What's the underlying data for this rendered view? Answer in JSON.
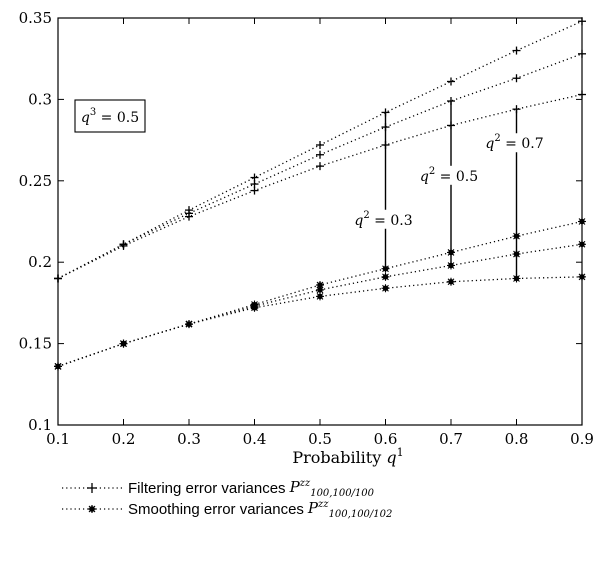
{
  "chart_data": {
    "type": "line",
    "xlabel": "Probability q",
    "xlabel_sup": "1",
    "xlim": [
      0.1,
      0.9
    ],
    "ylim": [
      0.1,
      0.35
    ],
    "xticks": [
      "0.1",
      "0.2",
      "0.3",
      "0.4",
      "0.5",
      "0.6",
      "0.7",
      "0.8",
      "0.9"
    ],
    "yticks": [
      "0.1",
      "0.15",
      "0.2",
      "0.25",
      "0.3",
      "0.35"
    ],
    "grid": false,
    "legend_position": "bottom",
    "box_label": {
      "var": "q",
      "sup": "3",
      "rest": " = 0.5"
    },
    "annotations": [
      {
        "var": "q",
        "sup": "2",
        "rest": " = 0.3"
      },
      {
        "var": "q",
        "sup": "2",
        "rest": " = 0.5"
      },
      {
        "var": "q",
        "sup": "2",
        "rest": " = 0.7"
      }
    ],
    "x": [
      0.1,
      0.2,
      0.3,
      0.4,
      0.5,
      0.6,
      0.7,
      0.8,
      0.9
    ],
    "series": [
      {
        "group": "filtering",
        "q2": 0.3,
        "values": [
          0.19,
          0.211,
          0.232,
          0.252,
          0.272,
          0.292,
          0.311,
          0.33,
          0.348
        ]
      },
      {
        "group": "filtering",
        "q2": 0.5,
        "values": [
          0.19,
          0.211,
          0.23,
          0.248,
          0.266,
          0.283,
          0.299,
          0.313,
          0.328
        ]
      },
      {
        "group": "filtering",
        "q2": 0.7,
        "values": [
          0.19,
          0.21,
          0.228,
          0.244,
          0.259,
          0.272,
          0.284,
          0.294,
          0.303
        ]
      },
      {
        "group": "smoothing",
        "q2": 0.3,
        "values": [
          0.136,
          0.15,
          0.162,
          0.174,
          0.186,
          0.196,
          0.206,
          0.216,
          0.225
        ]
      },
      {
        "group": "smoothing",
        "q2": 0.5,
        "values": [
          0.136,
          0.15,
          0.162,
          0.173,
          0.183,
          0.191,
          0.198,
          0.205,
          0.211
        ]
      },
      {
        "group": "smoothing",
        "q2": 0.7,
        "values": [
          0.136,
          0.15,
          0.162,
          0.172,
          0.179,
          0.184,
          0.188,
          0.19,
          0.191
        ]
      }
    ],
    "legend": [
      {
        "marker": "plus",
        "label": "Filtering error variances",
        "math": "P",
        "sup": "zz",
        "sub": "100,100/100"
      },
      {
        "marker": "star",
        "label": "Smoothing error variances",
        "math": "P",
        "sup": "zz",
        "sub": "100,100/102"
      }
    ]
  }
}
